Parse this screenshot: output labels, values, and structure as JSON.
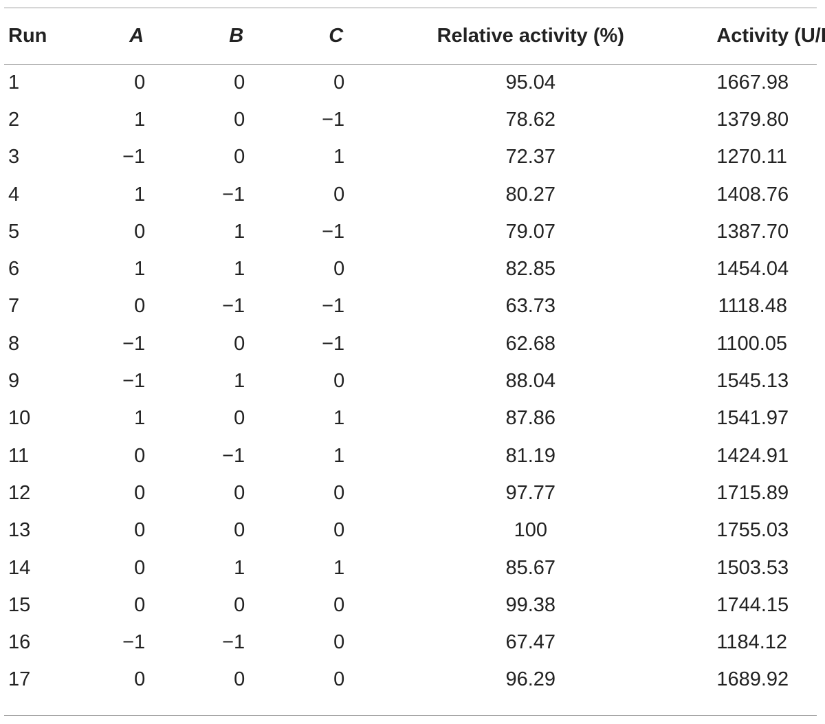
{
  "table": {
    "headers": {
      "run": "Run",
      "a": "A",
      "b": "B",
      "c": "C",
      "relative_activity": "Relative activity (%)",
      "activity": "Activity (U/L)"
    },
    "rows": [
      {
        "run": "1",
        "a": "0",
        "b": "0",
        "c": "0",
        "rel": "95.04",
        "act": "1667.98"
      },
      {
        "run": "2",
        "a": "1",
        "b": "0",
        "c": "−1",
        "rel": "78.62",
        "act": "1379.80"
      },
      {
        "run": "3",
        "a": "−1",
        "b": "0",
        "c": "1",
        "rel": "72.37",
        "act": "1270.11"
      },
      {
        "run": "4",
        "a": "1",
        "b": "−1",
        "c": "0",
        "rel": "80.27",
        "act": "1408.76"
      },
      {
        "run": "5",
        "a": "0",
        "b": "1",
        "c": "−1",
        "rel": "79.07",
        "act": "1387.70"
      },
      {
        "run": "6",
        "a": "1",
        "b": "1",
        "c": "0",
        "rel": "82.85",
        "act": "1454.04"
      },
      {
        "run": "7",
        "a": "0",
        "b": "−1",
        "c": "−1",
        "rel": "63.73",
        "act": "1118.48"
      },
      {
        "run": "8",
        "a": "−1",
        "b": "0",
        "c": "−1",
        "rel": "62.68",
        "act": "1100.05"
      },
      {
        "run": "9",
        "a": "−1",
        "b": "1",
        "c": "0",
        "rel": "88.04",
        "act": "1545.13"
      },
      {
        "run": "10",
        "a": "1",
        "b": "0",
        "c": "1",
        "rel": "87.86",
        "act": "1541.97"
      },
      {
        "run": "11",
        "a": "0",
        "b": "−1",
        "c": "1",
        "rel": "81.19",
        "act": "1424.91"
      },
      {
        "run": "12",
        "a": "0",
        "b": "0",
        "c": "0",
        "rel": "97.77",
        "act": "1715.89"
      },
      {
        "run": "13",
        "a": "0",
        "b": "0",
        "c": "0",
        "rel": "100",
        "act": "1755.03"
      },
      {
        "run": "14",
        "a": "0",
        "b": "1",
        "c": "1",
        "rel": "85.67",
        "act": "1503.53"
      },
      {
        "run": "15",
        "a": "0",
        "b": "0",
        "c": "0",
        "rel": "99.38",
        "act": "1744.15"
      },
      {
        "run": "16",
        "a": "−1",
        "b": "−1",
        "c": "0",
        "rel": "67.47",
        "act": "1184.12"
      },
      {
        "run": "17",
        "a": "0",
        "b": "0",
        "c": "0",
        "rel": "96.29",
        "act": "1689.92"
      }
    ]
  }
}
